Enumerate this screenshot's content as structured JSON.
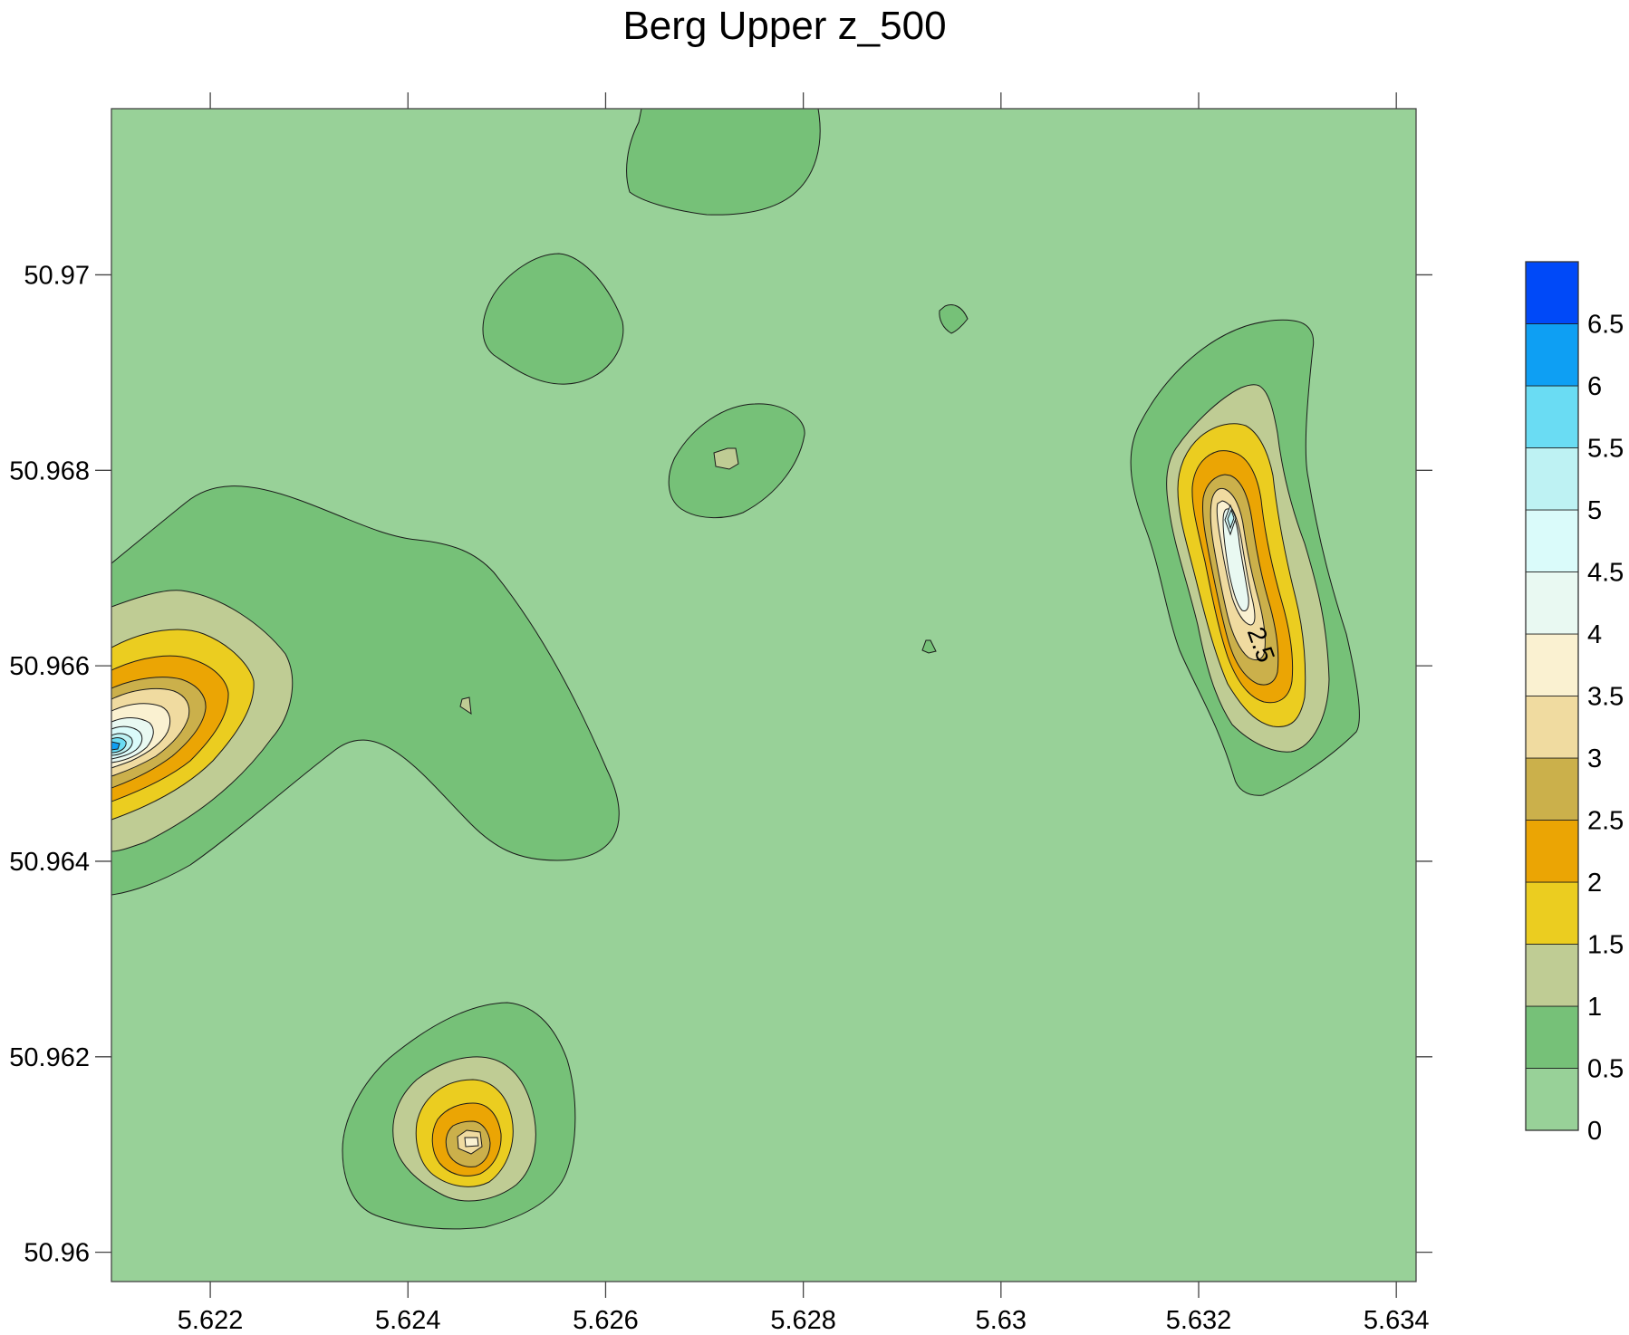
{
  "chart_data": {
    "type": "contour",
    "title": "Berg Upper z_500",
    "xlabel": "",
    "ylabel": "",
    "xlim": [
      5.621,
      5.6342
    ],
    "ylim": [
      50.9597,
      50.9717
    ],
    "x_ticks": [
      "5.622",
      "5.624",
      "5.626",
      "5.628",
      "5.63",
      "5.632",
      "5.634"
    ],
    "x_tick_values": [
      5.622,
      5.624,
      5.626,
      5.628,
      5.63,
      5.632,
      5.634
    ],
    "y_ticks": [
      "50.96",
      "50.962",
      "50.964",
      "50.966",
      "50.968",
      "50.97"
    ],
    "y_tick_values": [
      50.96,
      50.962,
      50.964,
      50.966,
      50.968,
      50.97
    ],
    "grid": false,
    "legend": "colorbar right",
    "levels": [
      0,
      0.5,
      1,
      1.5,
      2,
      2.5,
      3,
      3.5,
      4,
      4.5,
      5,
      5.5,
      6,
      6.5,
      7
    ],
    "colorbar_labels": [
      "0",
      "0.5",
      "1",
      "1.5",
      "2",
      "2.5",
      "3",
      "3.5",
      "4",
      "4.5",
      "5",
      "5.5",
      "6",
      "6.5"
    ],
    "colors": [
      "#98d198",
      "#76c178",
      "#bfcc94",
      "#ebcd20",
      "#eba504",
      "#cbb04b",
      "#f0dba0",
      "#faf1d1",
      "#e9f9f2",
      "#dafbfa",
      "#bef2f3",
      "#6adcf3",
      "#0e9ff3",
      "#0049f8"
    ],
    "contour_label": "2.5",
    "peaks": [
      {
        "x": 5.621,
        "y": 50.9651,
        "value": 6.3
      },
      {
        "x": 5.6323,
        "y": 50.9675,
        "value": 4.2
      },
      {
        "x": 5.6246,
        "y": 50.9612,
        "value": 3.2
      },
      {
        "x": 5.6272,
        "y": 50.9681,
        "value": 1.2
      },
      {
        "x": 5.6246,
        "y": 50.9656,
        "value": 1.1
      },
      {
        "x": 5.6295,
        "y": 50.9696,
        "value": 0.7
      },
      {
        "x": 5.6255,
        "y": 50.9694,
        "value": 0.8
      },
      {
        "x": 5.6272,
        "y": 50.9726,
        "value": 0.8
      },
      {
        "x": 5.6292,
        "y": 50.9662,
        "value": 0.6
      }
    ]
  }
}
